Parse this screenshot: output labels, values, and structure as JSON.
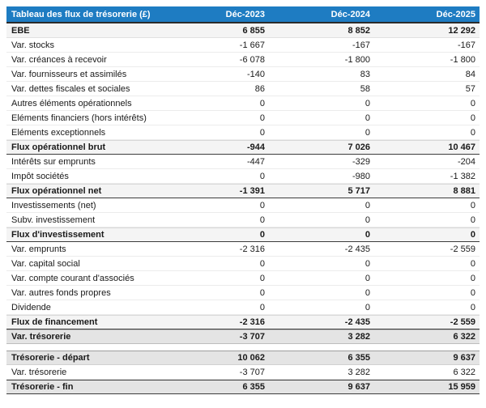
{
  "colors": {
    "header_bg": "#1e7cc2",
    "header_text": "#ffffff",
    "subtotal_bg": "#f4f4f4",
    "tresorerie_bg": "#e4e4e4",
    "dark_rule": "#3c3c3c"
  },
  "table": {
    "title": "Tableau des flux de trésorerie (£)",
    "columns": [
      "Déc-2023",
      "Déc-2024",
      "Déc-2025"
    ],
    "rows": [
      {
        "label": "EBE",
        "values": [
          "6 855",
          "8 852",
          "12 292"
        ],
        "style": "ebe"
      },
      {
        "label": "Var. stocks",
        "values": [
          "-1 667",
          "-167",
          "-167"
        ],
        "style": "plain"
      },
      {
        "label": "Var. créances à recevoir",
        "values": [
          "-6 078",
          "-1 800",
          "-1 800"
        ],
        "style": "plain"
      },
      {
        "label": "Var. fournisseurs et assimilés",
        "values": [
          "-140",
          "83",
          "84"
        ],
        "style": "plain"
      },
      {
        "label": "Var. dettes fiscales et sociales",
        "values": [
          "86",
          "58",
          "57"
        ],
        "style": "plain"
      },
      {
        "label": "Autres éléments opérationnels",
        "values": [
          "0",
          "0",
          "0"
        ],
        "style": "plain"
      },
      {
        "label": "Eléments financiers (hors intérêts)",
        "values": [
          "0",
          "0",
          "0"
        ],
        "style": "plain"
      },
      {
        "label": "Eléments exceptionnels",
        "values": [
          "0",
          "0",
          "0"
        ],
        "style": "plain"
      },
      {
        "label": "Flux opérationnel brut",
        "values": [
          "-944",
          "7 026",
          "10 467"
        ],
        "style": "sub"
      },
      {
        "label": "Intérêts sur emprunts",
        "values": [
          "-447",
          "-329",
          "-204"
        ],
        "style": "plain"
      },
      {
        "label": "Impôt sociétés",
        "values": [
          "0",
          "-980",
          "-1 382"
        ],
        "style": "plain"
      },
      {
        "label": "Flux opérationnel net",
        "values": [
          "-1 391",
          "5 717",
          "8 881"
        ],
        "style": "sub"
      },
      {
        "label": "Investissements (net)",
        "values": [
          "0",
          "0",
          "0"
        ],
        "style": "plain"
      },
      {
        "label": "Subv. investissement",
        "values": [
          "0",
          "0",
          "0"
        ],
        "style": "plain"
      },
      {
        "label": "Flux d'investissement",
        "values": [
          "0",
          "0",
          "0"
        ],
        "style": "sub"
      },
      {
        "label": "Var. emprunts",
        "values": [
          "-2 316",
          "-2 435",
          "-2 559"
        ],
        "style": "plain"
      },
      {
        "label": "Var. capital social",
        "values": [
          "0",
          "0",
          "0"
        ],
        "style": "plain"
      },
      {
        "label": "Var. compte courant d'associés",
        "values": [
          "0",
          "0",
          "0"
        ],
        "style": "plain"
      },
      {
        "label": "Var. autres fonds propres",
        "values": [
          "0",
          "0",
          "0"
        ],
        "style": "plain"
      },
      {
        "label": "Dividende",
        "values": [
          "0",
          "0",
          "0"
        ],
        "style": "plain"
      },
      {
        "label": "Flux de financement",
        "values": [
          "-2 316",
          "-2 435",
          "-2 559"
        ],
        "style": "sub"
      },
      {
        "label": "Var. trésorerie",
        "values": [
          "-3 707",
          "3 282",
          "6 322"
        ],
        "style": "treso"
      },
      {
        "style": "spacer"
      },
      {
        "label": "Trésorerie - départ",
        "values": [
          "10 062",
          "6 355",
          "9 637"
        ],
        "style": "depart"
      },
      {
        "label": "Var. trésorerie",
        "values": [
          "-3 707",
          "3 282",
          "6 322"
        ],
        "style": "plain"
      },
      {
        "label": "Trésorerie - fin",
        "values": [
          "6 355",
          "9 637",
          "15 959"
        ],
        "style": "fin"
      }
    ]
  }
}
